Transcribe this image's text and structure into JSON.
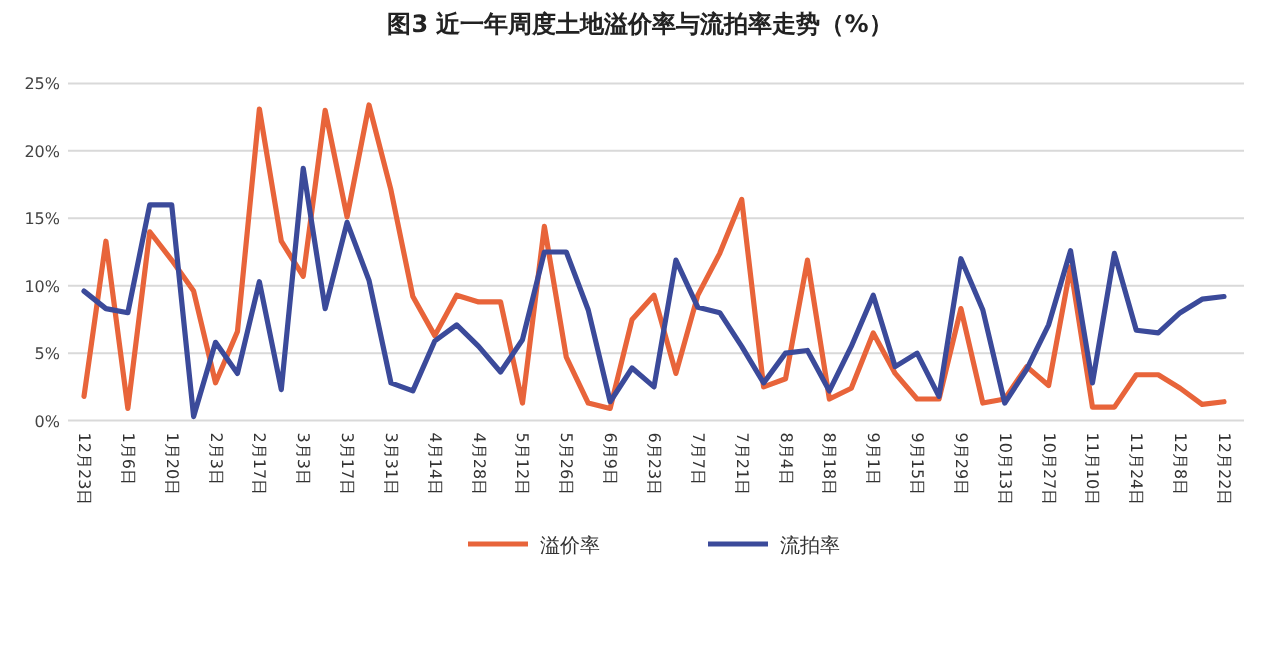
{
  "chart_data": {
    "type": "line",
    "title": "图3 近一年周度土地溢价率与流拍率走势（%）",
    "categories": [
      "12月23日",
      null,
      "1月6日",
      null,
      "1月20日",
      null,
      "2月3日",
      null,
      "2月17日",
      null,
      "3月3日",
      null,
      "3月17日",
      null,
      "3月31日",
      null,
      "4月14日",
      null,
      "4月28日",
      null,
      "5月12日",
      null,
      "5月26日",
      null,
      "6月9日",
      null,
      "6月23日",
      null,
      "7月7日",
      null,
      "7月21日",
      null,
      "8月4日",
      null,
      "8月18日",
      null,
      "9月1日",
      null,
      "9月15日",
      null,
      "9月29日",
      null,
      "10月13日",
      null,
      "10月27日",
      null,
      "11月10日",
      null,
      "11月24日",
      null,
      "12月8日",
      null,
      "12月22日"
    ],
    "series": [
      {
        "name": "溢价率",
        "color": "#e8643a",
        "values": [
          1.8,
          13.3,
          0.9,
          14.0,
          11.9,
          9.6,
          2.8,
          6.6,
          23.1,
          13.3,
          10.7,
          23.0,
          15.1,
          23.4,
          17.1,
          9.2,
          6.3,
          9.3,
          8.8,
          8.8,
          1.3,
          14.4,
          4.7,
          1.3,
          0.9,
          7.5,
          9.3,
          3.5,
          9.3,
          12.4,
          16.4,
          2.5,
          3.1,
          11.9,
          1.6,
          2.4,
          6.5,
          3.5,
          1.6,
          1.6,
          8.3,
          1.3,
          1.6,
          4.0,
          2.6,
          11.4,
          1.0,
          1.0,
          3.4,
          3.4,
          2.4,
          1.2,
          1.4
        ]
      },
      {
        "name": "流拍率",
        "color": "#3b4a9a",
        "values": [
          9.6,
          8.3,
          8.0,
          16.0,
          16.0,
          0.3,
          5.8,
          3.5,
          10.3,
          2.3,
          18.7,
          8.3,
          14.7,
          10.4,
          2.8,
          2.2,
          5.9,
          7.1,
          5.5,
          3.6,
          6.0,
          12.5,
          12.5,
          8.2,
          1.4,
          3.9,
          2.5,
          11.9,
          8.4,
          8.0,
          5.5,
          2.8,
          5.0,
          5.2,
          2.2,
          5.5,
          9.3,
          4.0,
          5.0,
          1.8,
          12.0,
          8.2,
          1.3,
          3.8,
          7.1,
          12.6,
          2.8,
          12.4,
          6.7,
          6.5,
          8.0,
          9.0,
          9.2
        ]
      }
    ],
    "ylim": [
      0,
      25
    ],
    "yticks": [
      {
        "value": 0,
        "label": "0%"
      },
      {
        "value": 5,
        "label": "5%"
      },
      {
        "value": 10,
        "label": "10%"
      },
      {
        "value": 15,
        "label": "15%"
      },
      {
        "value": 20,
        "label": "20%"
      },
      {
        "value": 25,
        "label": "25%"
      }
    ],
    "grid": "y",
    "legend": "bottom",
    "marker": "none",
    "line_style": "solid"
  }
}
